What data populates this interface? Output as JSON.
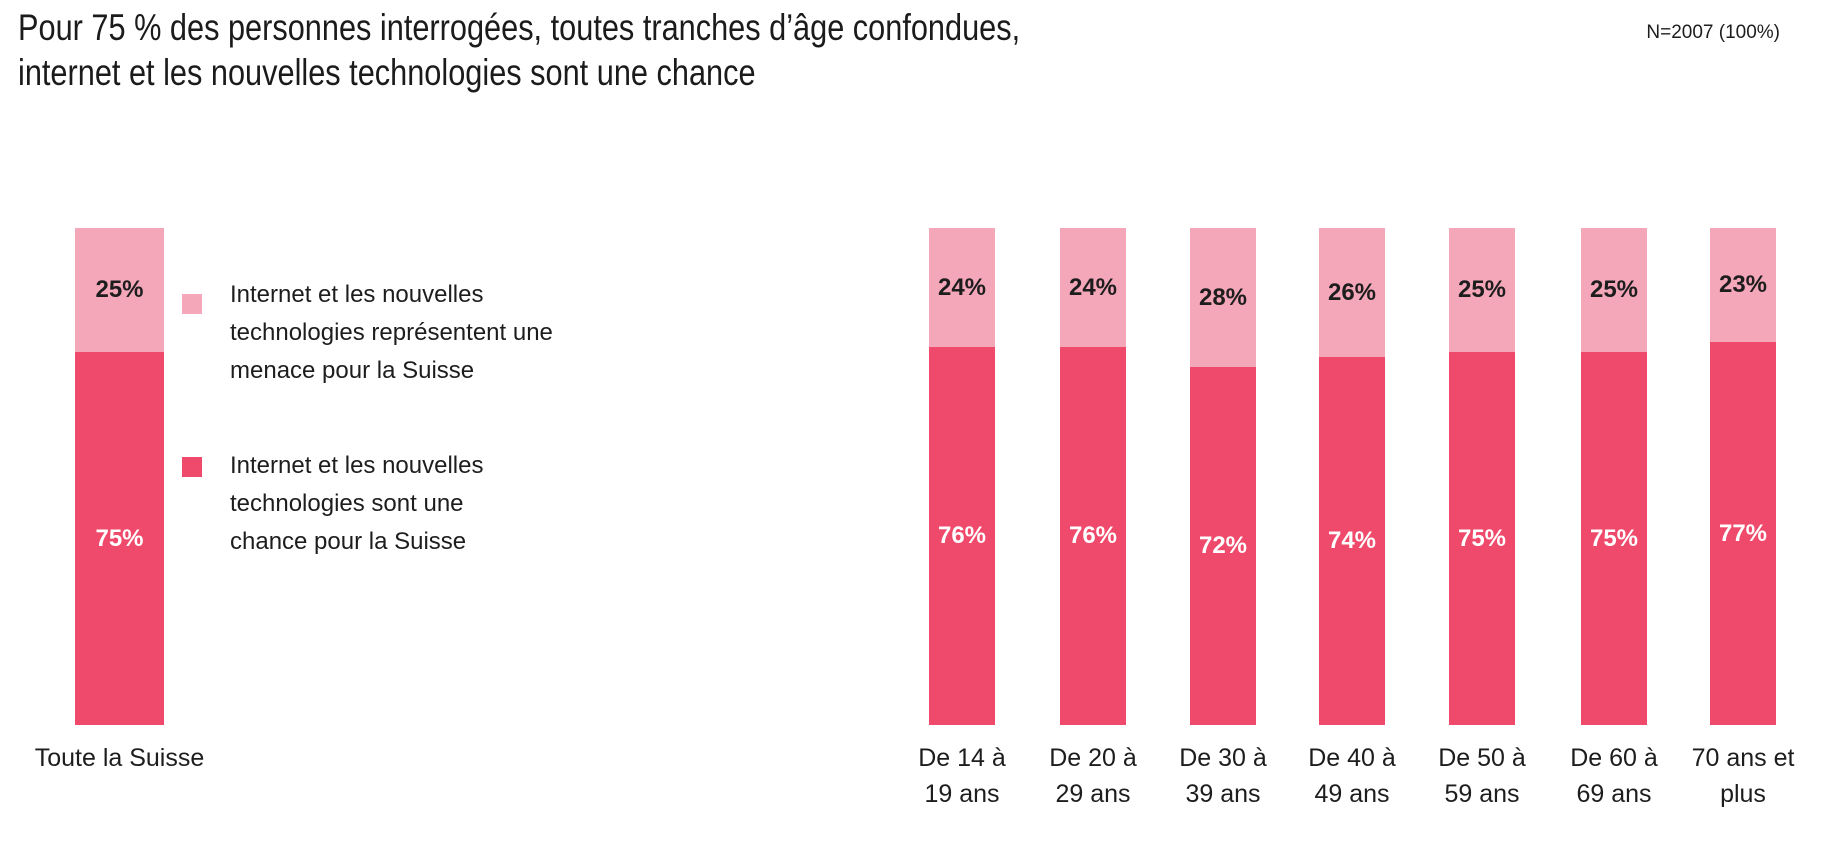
{
  "title": {
    "line1": "Pour 75 % des personnes interrogées, toutes tranches d’âge confondues,",
    "line2": "internet et les nouvelles technologies sont une chance"
  },
  "sample_note": "N=2007 (100%)",
  "colors": {
    "menace_pink": "#f5a7ba",
    "chance_red": "#ef4a6b",
    "text": "#1d1d1d",
    "label_on_dark": "#ffffff"
  },
  "legend": {
    "items": [
      {
        "key": "menace",
        "swatch_color": "#f5a7ba",
        "lines": [
          "Internet et les nouvelles",
          "technologies représentent une",
          "menace pour la Suisse"
        ]
      },
      {
        "key": "chance",
        "swatch_color": "#ef4a6b",
        "lines": [
          "Internet et les nouvelles",
          "technologies sont une",
          "chance pour la Suisse"
        ]
      }
    ]
  },
  "chart_data": {
    "type": "bar",
    "stacked": true,
    "unit": "percent",
    "title": "Pour 75 % des personnes interrogées, toutes tranches d’âge confondues, internet et les nouvelles technologies sont une chance",
    "xlabel": "",
    "ylabel": "",
    "ylim": [
      0,
      100
    ],
    "grid": false,
    "legend_position": "left-of-age-bars",
    "value_label_format": "{v}%",
    "categories": [
      "Toute la Suisse",
      "De 14 à 19 ans",
      "De 20 à 29 ans",
      "De 30 à 39 ans",
      "De 40 à 49 ans",
      "De 50 à 59 ans",
      "De 60 à 69 ans",
      "70 ans et plus"
    ],
    "category_label_lines": [
      [
        "Toute la Suisse"
      ],
      [
        "De 14 à",
        "19 ans"
      ],
      [
        "De 20 à",
        "29 ans"
      ],
      [
        "De 30 à",
        "39 ans"
      ],
      [
        "De 40 à",
        "49 ans"
      ],
      [
        "De 50 à",
        "59 ans"
      ],
      [
        "De 60 à",
        "69 ans"
      ],
      [
        "70 ans et",
        "plus"
      ]
    ],
    "series": [
      {
        "name": "Internet et les nouvelles technologies représentent une menace pour la Suisse",
        "color": "#f5a7ba",
        "label_color": "#1d1d1d",
        "values": [
          25,
          24,
          24,
          28,
          26,
          25,
          25,
          23
        ]
      },
      {
        "name": "Internet et les nouvelles technologies sont une chance pour la Suisse",
        "color": "#ef4a6b",
        "label_color": "#ffffff",
        "values": [
          75,
          76,
          76,
          72,
          74,
          75,
          75,
          77
        ]
      }
    ]
  }
}
